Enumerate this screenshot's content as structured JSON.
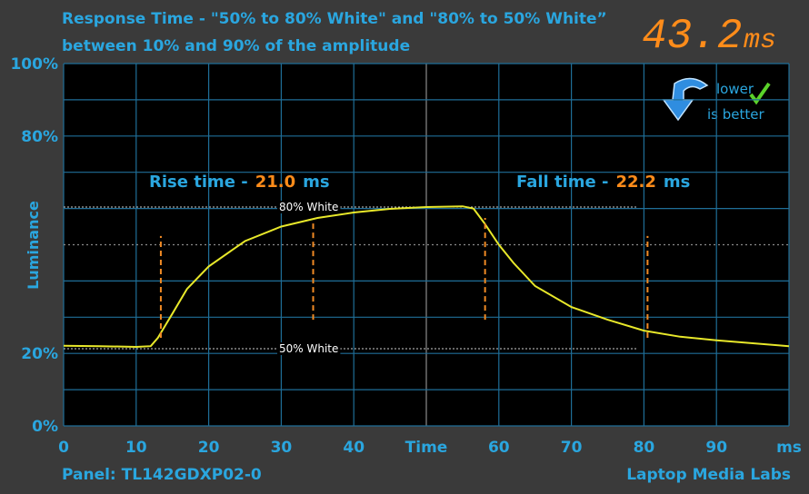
{
  "chart_data": {
    "type": "line",
    "title": [
      "Response Time - \"50% to 80% White\" and \"80% to 50% White”",
      "between 10% and 90% of the amplitude"
    ],
    "display": "43.2",
    "display_unit": "ms",
    "badge": [
      "lower",
      "is better"
    ],
    "y_label": "Luminance",
    "footer_left": "Panel: TL142GDXP02-0",
    "footer_right": "Laptop Media Labs",
    "xlim": [
      0,
      100
    ],
    "ylim": [
      0,
      100
    ],
    "xticks": [
      0,
      10,
      20,
      30,
      40,
      {
        "value": 50,
        "label": "Time"
      },
      60,
      70,
      80,
      90,
      {
        "value": 100,
        "label": "ms"
      }
    ],
    "yticks": [
      {
        "value": 0,
        "label": "0%"
      },
      {
        "value": 20,
        "label": "20%"
      },
      {
        "value": 80,
        "label": "80%"
      },
      {
        "value": 100,
        "label": "100%"
      }
    ],
    "xgrid": [
      0,
      10,
      20,
      30,
      40,
      50,
      60,
      70,
      80,
      90,
      100
    ],
    "ygrid": [
      0,
      10,
      20,
      30,
      40,
      50,
      60,
      70,
      80,
      90,
      100
    ],
    "grid": true,
    "x": [
      0,
      5,
      10,
      12,
      13,
      15,
      17,
      20,
      25,
      30,
      35,
      40,
      45,
      50,
      55,
      56.5,
      58,
      60,
      62,
      65,
      70,
      75,
      80,
      85,
      90,
      95,
      100
    ],
    "series": [
      {
        "color": "#e8e82a",
        "values": [
          22.1,
          22,
          21.8,
          22,
          24.3,
          31,
          37.8,
          44,
          51,
          55,
          57.4,
          58.9,
          59.9,
          60.4,
          60.6,
          60,
          56,
          50,
          45,
          38.6,
          32.8,
          29.3,
          26.3,
          24.6,
          23.6,
          22.8,
          22
        ]
      }
    ],
    "reference_lines": [
      {
        "label": "80% White",
        "y": 60.4,
        "x_end": 79
      },
      {
        "label": "50% White",
        "y": 21.3,
        "x_end": 79
      }
    ],
    "cursors": [
      {
        "x": 13.4,
        "y1": 24.3,
        "y2": 52.4
      },
      {
        "x": 34.4,
        "y1": 29.3,
        "y2": 56.6
      },
      {
        "x": 58.1,
        "y1": 29.3,
        "y2": 57.4
      },
      {
        "x": 80.5,
        "y1": 24.3,
        "y2": 52.4
      }
    ],
    "cursor_color": "#f08a24",
    "rise": {
      "label": "Rise time -",
      "value": "21.0",
      "unit": "ms"
    },
    "fall": {
      "label": "Fall time -",
      "value": "22.2",
      "unit": "ms"
    }
  }
}
